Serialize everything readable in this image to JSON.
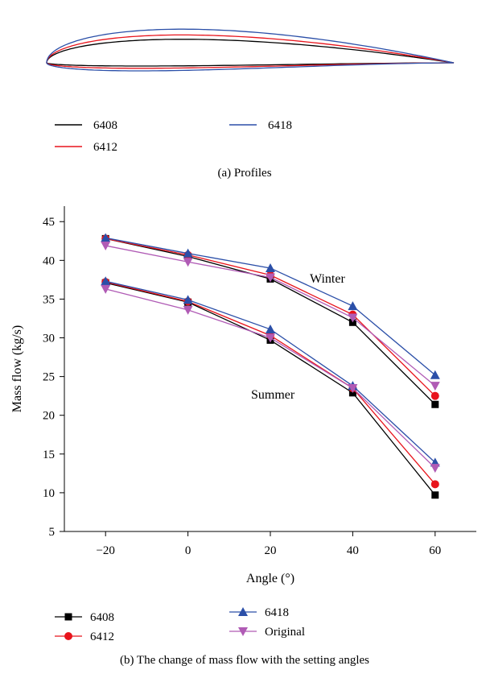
{
  "panel_a": {
    "caption": "(a)  Profiles",
    "legend": [
      {
        "label": "6408",
        "color": "#000000"
      },
      {
        "label": "6412",
        "color": "#e8141c"
      },
      {
        "label": "6418",
        "color": "#2b4fa8"
      }
    ]
  },
  "panel_b": {
    "caption": "(b)  The change of mass flow with the setting angles",
    "annotations": {
      "winter": "Winter",
      "summer": "Summer"
    }
  },
  "chart_data": [
    {
      "type": "line",
      "title": "",
      "xlabel": "",
      "ylabel": "",
      "series": [
        {
          "name": "6408",
          "color": "#000000",
          "thickness_pct_chord": 8
        },
        {
          "name": "6412",
          "color": "#e8141c",
          "thickness_pct_chord": 12
        },
        {
          "name": "6418",
          "color": "#2b4fa8",
          "thickness_pct_chord": 18
        }
      ],
      "grid": false,
      "legend": "bottom"
    },
    {
      "type": "line",
      "title": "",
      "xlabel": "Angle (°)",
      "ylabel": "Mass flow (kg/s)",
      "x": [
        -20,
        0,
        20,
        40,
        60
      ],
      "xticks": [
        "−20",
        "0",
        "20",
        "40",
        "60"
      ],
      "yticks": [
        "5",
        "10",
        "15",
        "20",
        "25",
        "30",
        "35",
        "40",
        "45"
      ],
      "xlim": [
        -30,
        70
      ],
      "ylim": [
        5,
        47
      ],
      "grid": false,
      "legend": "bottom",
      "series": [
        {
          "name": "6408",
          "group": "Winter",
          "color": "#000000",
          "marker": "square",
          "values": [
            42.8,
            40.5,
            37.6,
            32.0,
            21.4
          ]
        },
        {
          "name": "6412",
          "group": "Winter",
          "color": "#e8141c",
          "marker": "circle",
          "values": [
            42.8,
            40.7,
            38.1,
            33.0,
            22.5
          ]
        },
        {
          "name": "6418",
          "group": "Winter",
          "color": "#2b4fa8",
          "marker": "triangle-up",
          "values": [
            42.9,
            40.9,
            39.0,
            34.1,
            25.2
          ]
        },
        {
          "name": "Original",
          "group": "Winter",
          "color": "#b05bb5",
          "marker": "triangle-down",
          "values": [
            41.9,
            39.8,
            37.8,
            32.6,
            23.8
          ]
        },
        {
          "name": "6408",
          "group": "Summer",
          "color": "#000000",
          "marker": "square",
          "values": [
            37.1,
            34.6,
            29.7,
            22.9,
            9.7
          ]
        },
        {
          "name": "6412",
          "group": "Summer",
          "color": "#e8141c",
          "marker": "circle",
          "values": [
            37.2,
            34.7,
            30.3,
            23.5,
            11.1
          ]
        },
        {
          "name": "6418",
          "group": "Summer",
          "color": "#2b4fa8",
          "marker": "triangle-up",
          "values": [
            37.3,
            34.9,
            31.1,
            23.8,
            13.9
          ]
        },
        {
          "name": "Original",
          "group": "Summer",
          "color": "#b05bb5",
          "marker": "triangle-down",
          "values": [
            36.3,
            33.6,
            30.0,
            23.5,
            13.2
          ]
        }
      ]
    }
  ]
}
